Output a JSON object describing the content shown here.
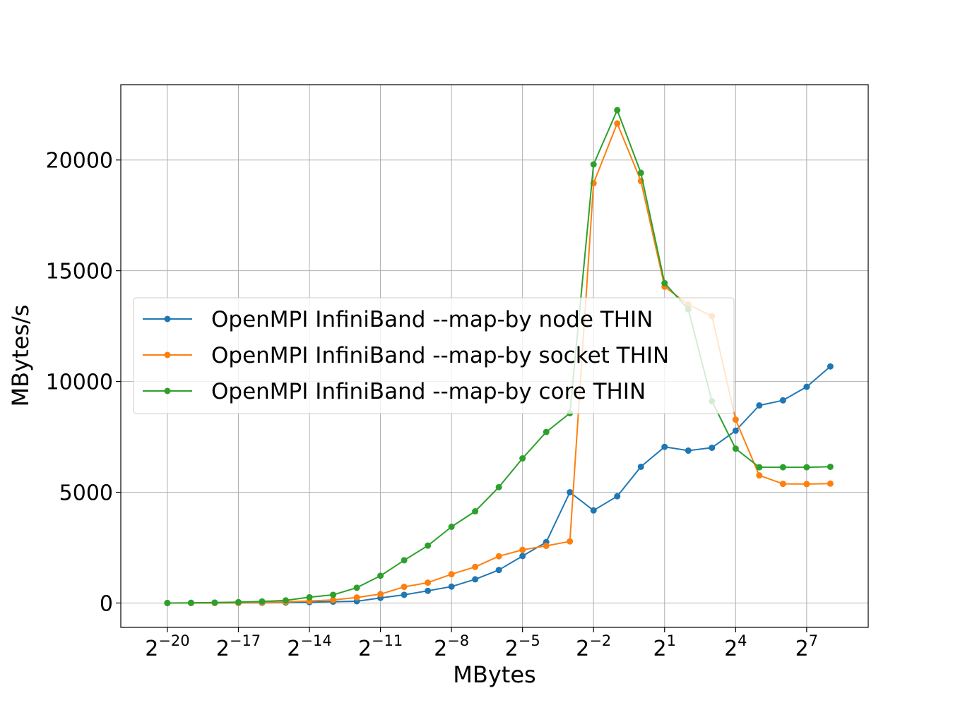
{
  "chart_data": {
    "type": "line",
    "title": "",
    "xlabel": "MBytes",
    "ylabel": "MBytes/s",
    "x_scale": "log2",
    "xlim": [
      2.44e-07,
      776.0
    ],
    "ylim": [
      -1100,
      23400
    ],
    "x_ticks": [
      {
        "base": "2",
        "exp": "−20"
      },
      {
        "base": "2",
        "exp": "−17"
      },
      {
        "base": "2",
        "exp": "−14"
      },
      {
        "base": "2",
        "exp": "−11"
      },
      {
        "base": "2",
        "exp": "−8"
      },
      {
        "base": "2",
        "exp": "−5"
      },
      {
        "base": "2",
        "exp": "−2"
      },
      {
        "base": "2",
        "exp": "1"
      },
      {
        "base": "2",
        "exp": "4"
      },
      {
        "base": "2",
        "exp": "7"
      }
    ],
    "y_ticks": [
      "0",
      "5000",
      "10000",
      "15000",
      "20000"
    ],
    "grid": true,
    "legend_position": "center-left",
    "x": [
      9.5367431640625e-07,
      1.9073486328125e-06,
      3.814697265625e-06,
      7.62939453125e-06,
      1.52587890625e-05,
      3.0517578125e-05,
      6.103515625e-05,
      0.0001220703125,
      0.000244140625,
      0.00048828125,
      0.0009765625,
      0.001953125,
      0.00390625,
      0.0078125,
      0.015625,
      0.03125,
      0.0625,
      0.125,
      0.25,
      0.5,
      1,
      2,
      4,
      8,
      16,
      32,
      64,
      128,
      256
    ],
    "series": [
      {
        "name": "OpenMPI InfiniBand --map-by node THIN",
        "color": "#1f77b4",
        "values": [
          0,
          0,
          2,
          5,
          10,
          20,
          40,
          60,
          80,
          230,
          370,
          550,
          740,
          1070,
          1490,
          2120,
          2750,
          5000,
          4180,
          4820,
          6150,
          7050,
          6880,
          7010,
          7780,
          8920,
          9150,
          9760,
          10680
        ]
      },
      {
        "name": "OpenMPI InfiniBand --map-by socket THIN",
        "color": "#ff7f0e",
        "values": [
          0,
          0,
          5,
          10,
          25,
          50,
          90,
          140,
          250,
          400,
          730,
          920,
          1300,
          1630,
          2110,
          2400,
          2580,
          2780,
          18950,
          21650,
          19050,
          14280,
          13480,
          12950,
          8280,
          5760,
          5380,
          5370,
          5390
        ]
      },
      {
        "name": "OpenMPI InfiniBand --map-by core THIN",
        "color": "#2ca02c",
        "values": [
          0,
          10,
          20,
          40,
          70,
          120,
          260,
          370,
          690,
          1230,
          1930,
          2590,
          3440,
          4140,
          5230,
          6530,
          7720,
          8570,
          19800,
          22250,
          19420,
          14440,
          13260,
          9110,
          6970,
          6130,
          6130,
          6130,
          6150
        ]
      }
    ]
  }
}
